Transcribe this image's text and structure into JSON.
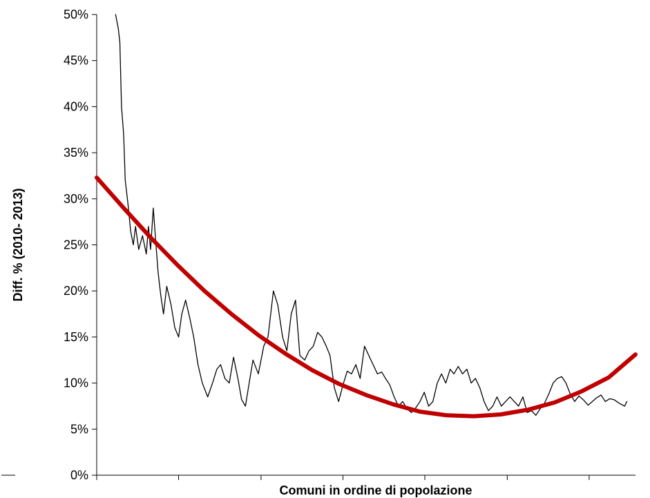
{
  "chart_data": {
    "type": "line",
    "xlabel": "Comuni in ordine di popolazione",
    "ylabel": "Diff. % (2010- 2013)",
    "ylim": [
      0,
      0.5
    ],
    "y_ticks": [
      0,
      0.05,
      0.1,
      0.15,
      0.2,
      0.25,
      0.3,
      0.35,
      0.4,
      0.45,
      0.5
    ],
    "y_tick_labels": [
      "0%",
      "5%",
      "10%",
      "15%",
      "20%",
      "25%",
      "30%",
      "35%",
      "40%",
      "45%",
      "50%"
    ],
    "xlim": [
      0,
      100
    ],
    "x_ticks": [
      0,
      15.2,
      30.5,
      45.7,
      60.9,
      76.2,
      91.4
    ],
    "x_tick_labels": [],
    "grid": false,
    "series": [
      {
        "color": "#000000",
        "x": [
          3.5,
          4.0,
          4.3,
          4.6,
          5.0,
          5.3,
          5.8,
          6.3,
          6.8,
          7.2,
          7.8,
          8.5,
          9.2,
          9.6,
          10.0,
          10.5,
          11.0,
          11.4,
          11.9,
          12.4,
          13.0,
          13.8,
          14.5,
          15.2,
          15.8,
          16.5,
          17.3,
          18.0,
          18.8,
          19.6,
          20.6,
          21.5,
          22.3,
          23.0,
          23.8,
          24.6,
          25.4,
          26.2,
          26.9,
          27.6,
          28.3,
          29.0,
          30.0,
          31.0,
          31.8,
          32.8,
          33.6,
          34.5,
          35.3,
          36.1,
          36.9,
          37.7,
          38.6,
          39.4,
          40.2,
          41.0,
          41.8,
          42.6,
          43.3,
          44.1,
          44.9,
          45.7,
          46.5,
          47.3,
          48.1,
          48.9,
          49.7,
          50.5,
          51.3,
          52.1,
          52.9,
          53.6,
          54.4,
          55.2,
          56.0,
          56.8,
          57.6,
          58.4,
          59.2,
          60.0,
          60.8,
          61.6,
          62.4,
          63.2,
          64.0,
          64.8,
          65.6,
          66.3,
          67.1,
          67.9,
          68.7,
          69.5,
          70.3,
          71.1,
          71.9,
          72.7,
          73.5,
          74.3,
          75.1,
          75.9,
          76.7,
          77.5,
          78.3,
          79.1,
          79.9,
          80.7,
          81.5,
          82.3,
          83.1,
          83.9,
          84.7,
          85.5,
          86.3,
          87.1,
          87.9,
          88.7,
          89.5,
          90.3,
          91.2,
          92.0,
          92.8,
          93.6,
          94.4,
          95.2,
          96.0,
          97.0,
          98.0,
          98.4
        ],
        "y": [
          0.5,
          0.485,
          0.47,
          0.4,
          0.37,
          0.32,
          0.295,
          0.265,
          0.25,
          0.27,
          0.245,
          0.26,
          0.24,
          0.27,
          0.245,
          0.29,
          0.25,
          0.22,
          0.195,
          0.175,
          0.205,
          0.185,
          0.16,
          0.15,
          0.175,
          0.19,
          0.17,
          0.15,
          0.12,
          0.1,
          0.085,
          0.1,
          0.115,
          0.12,
          0.105,
          0.1,
          0.128,
          0.105,
          0.082,
          0.075,
          0.1,
          0.125,
          0.11,
          0.14,
          0.15,
          0.2,
          0.185,
          0.15,
          0.135,
          0.175,
          0.19,
          0.13,
          0.125,
          0.135,
          0.14,
          0.155,
          0.15,
          0.14,
          0.13,
          0.095,
          0.08,
          0.098,
          0.113,
          0.11,
          0.12,
          0.105,
          0.14,
          0.13,
          0.12,
          0.11,
          0.112,
          0.105,
          0.098,
          0.085,
          0.075,
          0.08,
          0.072,
          0.068,
          0.073,
          0.08,
          0.09,
          0.075,
          0.08,
          0.1,
          0.11,
          0.1,
          0.115,
          0.11,
          0.118,
          0.11,
          0.115,
          0.1,
          0.105,
          0.095,
          0.08,
          0.07,
          0.075,
          0.085,
          0.075,
          0.08,
          0.085,
          0.08,
          0.075,
          0.085,
          0.068,
          0.07,
          0.065,
          0.072,
          0.078,
          0.088,
          0.1,
          0.105,
          0.107,
          0.1,
          0.088,
          0.08,
          0.086,
          0.082,
          0.076,
          0.08,
          0.084,
          0.087,
          0.08,
          0.083,
          0.082,
          0.078,
          0.075,
          0.08
        ]
      },
      {
        "color": "#c00000",
        "x": [
          0,
          5,
          10,
          15,
          20,
          25,
          30,
          35,
          40,
          45,
          50,
          55,
          60,
          65,
          70,
          75,
          80,
          85,
          90,
          95,
          100
        ],
        "y": [
          0.323,
          0.29,
          0.258,
          0.228,
          0.2,
          0.175,
          0.152,
          0.132,
          0.114,
          0.099,
          0.087,
          0.077,
          0.069,
          0.065,
          0.064,
          0.066,
          0.071,
          0.079,
          0.091,
          0.106,
          0.131
        ]
      }
    ]
  }
}
